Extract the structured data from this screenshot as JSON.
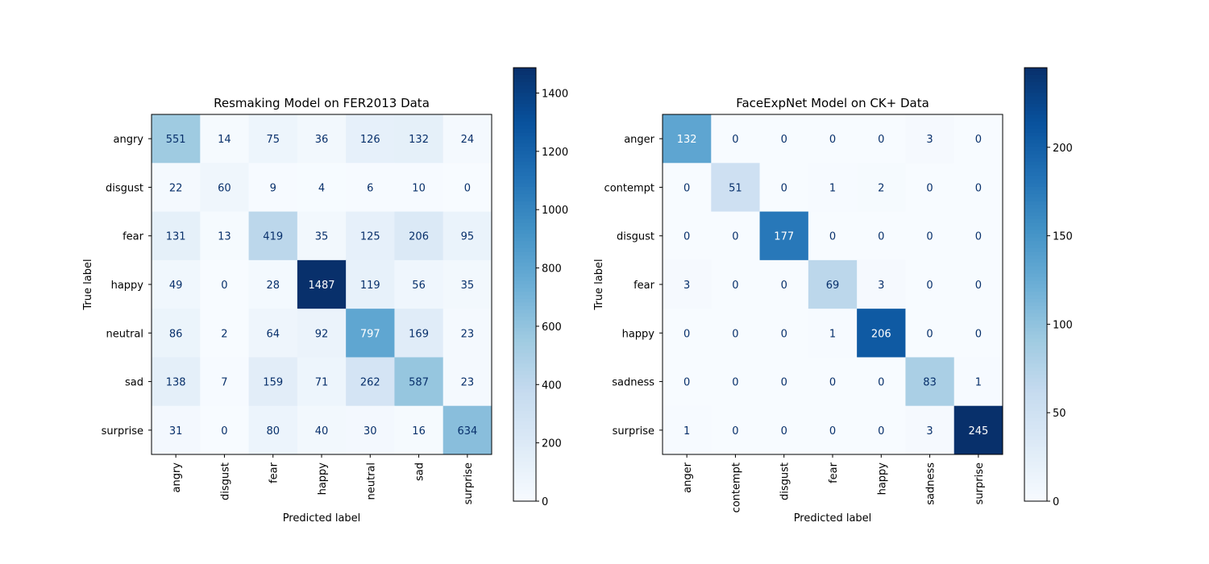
{
  "chart_data": [
    {
      "type": "heatmap",
      "title": "Resmaking Model on FER2013 Data",
      "xlabel": "Predicted label",
      "ylabel": "True label",
      "x_categories": [
        "angry",
        "disgust",
        "fear",
        "happy",
        "neutral",
        "sad",
        "surprise"
      ],
      "y_categories": [
        "angry",
        "disgust",
        "fear",
        "happy",
        "neutral",
        "sad",
        "surprise"
      ],
      "values": [
        [
          551,
          14,
          75,
          36,
          126,
          132,
          24
        ],
        [
          22,
          60,
          9,
          4,
          6,
          10,
          0
        ],
        [
          131,
          13,
          419,
          35,
          125,
          206,
          95
        ],
        [
          49,
          0,
          28,
          1487,
          119,
          56,
          35
        ],
        [
          86,
          2,
          64,
          92,
          797,
          169,
          23
        ],
        [
          138,
          7,
          159,
          71,
          262,
          587,
          23
        ],
        [
          31,
          0,
          80,
          40,
          30,
          16,
          634
        ]
      ],
      "colormap": "Blues",
      "colorbar": {
        "range": [
          0,
          1487
        ],
        "ticks": [
          0,
          200,
          400,
          600,
          800,
          1000,
          1200,
          1400
        ]
      }
    },
    {
      "type": "heatmap",
      "title": "FaceExpNet Model on CK+ Data",
      "xlabel": "Predicted label",
      "ylabel": "True label",
      "x_categories": [
        "anger",
        "contempt",
        "disgust",
        "fear",
        "happy",
        "sadness",
        "surprise"
      ],
      "y_categories": [
        "anger",
        "contempt",
        "disgust",
        "fear",
        "happy",
        "sadness",
        "surprise"
      ],
      "values": [
        [
          132,
          0,
          0,
          0,
          0,
          3,
          0
        ],
        [
          0,
          51,
          0,
          1,
          2,
          0,
          0
        ],
        [
          0,
          0,
          177,
          0,
          0,
          0,
          0
        ],
        [
          3,
          0,
          0,
          69,
          3,
          0,
          0
        ],
        [
          0,
          0,
          0,
          1,
          206,
          0,
          0
        ],
        [
          0,
          0,
          0,
          0,
          0,
          83,
          1
        ],
        [
          1,
          0,
          0,
          0,
          0,
          3,
          245
        ]
      ],
      "colormap": "Blues",
      "colorbar": {
        "range": [
          0,
          245
        ],
        "ticks": [
          0,
          50,
          100,
          150,
          200
        ]
      }
    }
  ]
}
